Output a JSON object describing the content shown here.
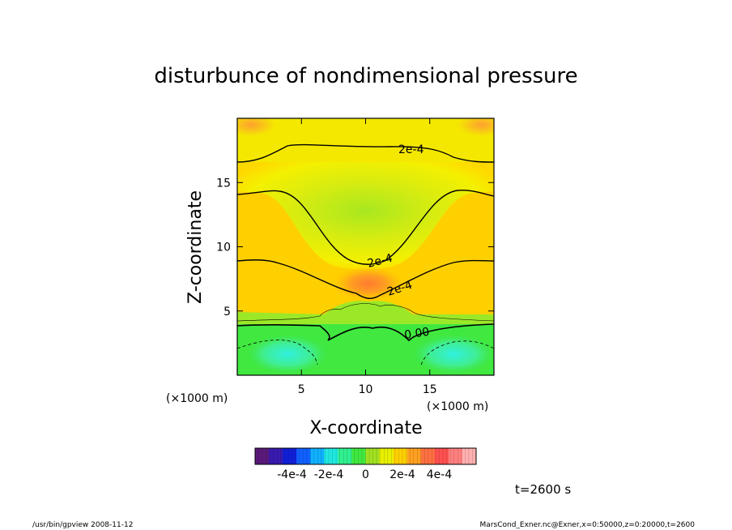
{
  "chart_data": {
    "type": "heatmap",
    "title": "disturbunce of nondimensional pressure",
    "xlabel": "X-coordinate",
    "ylabel": "Z-coordinate",
    "x_unit": "(×1000 m)",
    "y_unit": "(×1000 m)",
    "xlim": [
      0,
      20
    ],
    "ylim": [
      0,
      20
    ],
    "x_ticks": [
      "5",
      "10",
      "15"
    ],
    "y_ticks": [
      "5",
      "10",
      "15"
    ],
    "x_tick_values": [
      5,
      10,
      15
    ],
    "y_tick_values": [
      5,
      10,
      15
    ],
    "colorbar": {
      "range": [
        -0.0006,
        0.0006
      ],
      "tick_labels": [
        "-4e-4",
        "-2e-4",
        "0",
        "2e-4",
        "4e-4"
      ],
      "tick_values": [
        -0.0004,
        -0.0002,
        0,
        0.0002,
        0.0004
      ],
      "colors": [
        "#5a1a7a",
        "#3a1ab0",
        "#1020d8",
        "#1060ff",
        "#10b0ff",
        "#20e8e0",
        "#30f090",
        "#40e840",
        "#a0e020",
        "#e8f000",
        "#ffd000",
        "#ffa020",
        "#ff7040",
        "#ff5050",
        "#ff8080",
        "#ffb0b0"
      ]
    },
    "contour_labels": [
      "2e-4",
      "2e-4",
      "2e-4",
      "0.00"
    ],
    "annotation": "t=2600 s"
  },
  "footer": {
    "left": "/usr/bin/gpview   2008-11-12",
    "right": "MarsCond_Exner.nc@Exner,x=0:50000,z=0:20000,t=2600"
  }
}
